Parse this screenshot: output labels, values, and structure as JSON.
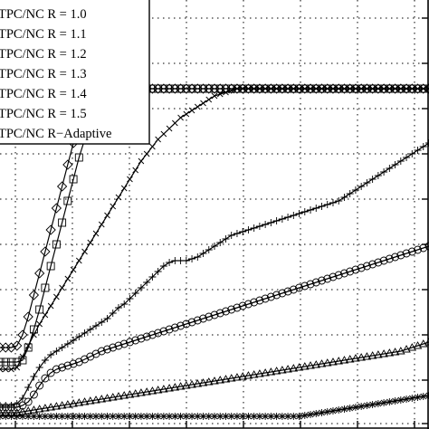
{
  "chart_data": {
    "type": "line",
    "title": "",
    "xlabel": "",
    "ylabel": "",
    "grid": true,
    "legend_placement": "top-left",
    "x": [
      0,
      0.5,
      1,
      1.5,
      2,
      2.5,
      3,
      3.5,
      4,
      4.5,
      5,
      5.5,
      6,
      6.5,
      7,
      7.5,
      8,
      8.5,
      9,
      9.5,
      10,
      10.5,
      11,
      11.5,
      12,
      12.5,
      13,
      13.5,
      14,
      14.5,
      15,
      15.5,
      16,
      16.5,
      17,
      17.5,
      18,
      18.5,
      19,
      19.5,
      20,
      20.5,
      21,
      21.5,
      22,
      22.5,
      23,
      23.5,
      24,
      24.5,
      25,
      25.5,
      26,
      26.5,
      27,
      27.5,
      28,
      28.5,
      29,
      29.5,
      30,
      30.5,
      31,
      31.5,
      32,
      32.5,
      33,
      33.5,
      34,
      34.5,
      35,
      35.5,
      36,
      36.5,
      37,
      37.5,
      38
    ],
    "xlim": [
      0,
      38
    ],
    "ylim": [
      0,
      474
    ],
    "series": [
      {
        "name": "TPC/NC R = 1.0",
        "marker": "asterisk",
        "values": [
          14,
          14,
          14,
          14,
          14,
          14,
          14,
          14,
          14,
          14,
          14,
          14,
          14,
          14,
          14,
          14,
          14,
          14,
          14,
          14,
          14,
          14,
          14,
          14,
          14,
          14,
          14,
          14,
          14,
          14,
          14,
          14,
          14,
          14,
          14,
          14,
          14,
          14,
          14,
          14,
          14,
          14,
          14,
          14,
          14,
          14,
          14,
          14,
          14,
          14,
          14,
          14,
          14,
          14,
          15,
          16,
          17,
          18,
          19,
          20,
          21,
          22,
          23,
          24,
          25,
          26,
          27,
          28,
          29,
          30,
          31,
          32,
          33,
          34,
          35,
          36,
          37
        ]
      },
      {
        "name": "TPC/NC R = 1.1",
        "marker": "triangle",
        "values": [
          18,
          18,
          18,
          18,
          19,
          20,
          21,
          22,
          23,
          24,
          25,
          26,
          27,
          28,
          29,
          30,
          31,
          32,
          33,
          34,
          35,
          36,
          37,
          38,
          39,
          40,
          41,
          42,
          43,
          44,
          45,
          46,
          47,
          48,
          49,
          50,
          51,
          52,
          53,
          54,
          55,
          56,
          57,
          58,
          59,
          60,
          61,
          62,
          63,
          64,
          65,
          66,
          67,
          68,
          69,
          70,
          71,
          72,
          73,
          74,
          75,
          76,
          77,
          78,
          79,
          80,
          81,
          82,
          83,
          84,
          85,
          86,
          88,
          90,
          92,
          94,
          96
        ]
      },
      {
        "name": "TPC/NC R = 1.2",
        "marker": "circle",
        "values": [
          24,
          24,
          24,
          24,
          26,
          30,
          38,
          48,
          56,
          62,
          66,
          68,
          70,
          72,
          74,
          77,
          80,
          83,
          86,
          88,
          90,
          92,
          94,
          96,
          98,
          100,
          102,
          104,
          106,
          108,
          110,
          112,
          114,
          116,
          118,
          120,
          122,
          124,
          126,
          128,
          130,
          132,
          134,
          136,
          138,
          140,
          142,
          144,
          146,
          148,
          150,
          152,
          154,
          156,
          158,
          160,
          162,
          164,
          166,
          168,
          170,
          172,
          174,
          176,
          178,
          180,
          182,
          184,
          186,
          188,
          190,
          192,
          194,
          196,
          198,
          200,
          202
        ]
      },
      {
        "name": "TPC/NC R = 1.3",
        "marker": "plus",
        "values": [
          26,
          26,
          26,
          28,
          34,
          46,
          58,
          68,
          76,
          82,
          86,
          90,
          94,
          98,
          102,
          106,
          110,
          114,
          118,
          122,
          128,
          134,
          138,
          144,
          150,
          156,
          162,
          168,
          174,
          180,
          184,
          186,
          186,
          186,
          188,
          190,
          194,
          198,
          202,
          206,
          210,
          214,
          216,
          218,
          220,
          222,
          224,
          226,
          228,
          230,
          232,
          234,
          236,
          238,
          240,
          242,
          244,
          246,
          248,
          250,
          252,
          256,
          260,
          264,
          268,
          272,
          276,
          280,
          284,
          288,
          292,
          296,
          300,
          304,
          308,
          312,
          316
        ]
      },
      {
        "name": "TPC/NC R = 1.4",
        "marker": "x",
        "values": [
          66,
          66,
          66,
          68,
          80,
          92,
          104,
          116,
          126,
          136,
          146,
          156,
          166,
          176,
          186,
          196,
          206,
          216,
          226,
          236,
          246,
          256,
          266,
          276,
          286,
          296,
          304,
          312,
          320,
          326,
          332,
          338,
          344,
          348,
          352,
          356,
          360,
          364,
          368,
          370,
          372,
          374,
          376,
          376,
          376,
          376,
          376,
          376,
          376,
          376,
          376,
          376,
          376,
          376,
          376,
          376,
          376,
          376,
          376,
          376,
          376,
          376,
          376,
          376,
          376,
          376,
          376,
          376,
          376,
          376,
          376,
          376,
          376,
          376,
          376,
          376,
          376
        ]
      },
      {
        "name": "TPC/NC R = 1.5",
        "marker": "square",
        "values": [
          74,
          74,
          74,
          74,
          76,
          90,
          110,
          132,
          156,
          180,
          204,
          228,
          252,
          276,
          300,
          320,
          340,
          356,
          368,
          374,
          376,
          376,
          376,
          376,
          376,
          376,
          376,
          376,
          376,
          376,
          376,
          376,
          376,
          376,
          376,
          376,
          376,
          376,
          376,
          376,
          376,
          376,
          376,
          376,
          376,
          376,
          376,
          376,
          376,
          376,
          376,
          376,
          376,
          376,
          376,
          376,
          376,
          376,
          376,
          376,
          376,
          376,
          376,
          376,
          376,
          376,
          376,
          376,
          376,
          376,
          376,
          376,
          376,
          376,
          376,
          376,
          376
        ]
      },
      {
        "name": "TPC/NC R−Adaptive",
        "marker": "diamond",
        "values": [
          90,
          90,
          90,
          92,
          104,
          124,
          148,
          172,
          196,
          220,
          244,
          268,
          292,
          316,
          340,
          362,
          374,
          376,
          376,
          376,
          376,
          376,
          376,
          376,
          376,
          376,
          376,
          376,
          376,
          376,
          376,
          376,
          376,
          376,
          376,
          376,
          376,
          376,
          376,
          376,
          376,
          376,
          376,
          376,
          376,
          376,
          376,
          376,
          376,
          376,
          376,
          376,
          376,
          376,
          376,
          376,
          376,
          376,
          376,
          376,
          376,
          376,
          376,
          376,
          376,
          376,
          376,
          376,
          376,
          376,
          376,
          376,
          376,
          376,
          376,
          376,
          376
        ]
      }
    ]
  }
}
